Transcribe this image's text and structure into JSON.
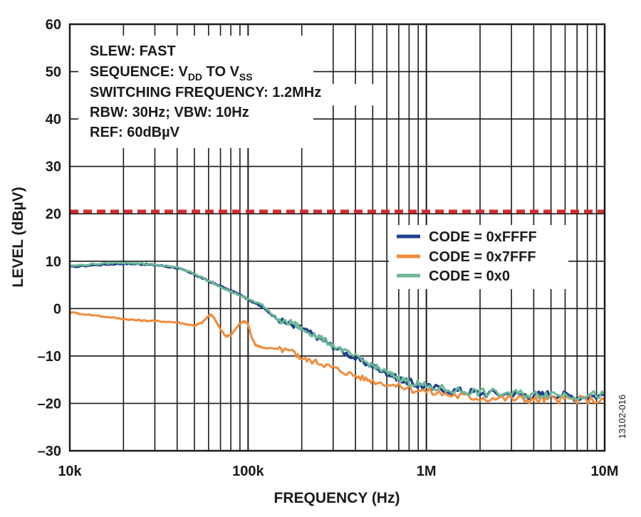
{
  "chart_data": {
    "type": "line",
    "xlabel": "FREQUENCY (Hz)",
    "ylabel": "LEVEL (dBµV)",
    "x_scale": "log",
    "xlim": [
      10000,
      10000000
    ],
    "ylim": [
      -30,
      60
    ],
    "x_ticks": [
      {
        "value": 10000,
        "label": "10k"
      },
      {
        "value": 100000,
        "label": "100k"
      },
      {
        "value": 1000000,
        "label": "1M"
      },
      {
        "value": 10000000,
        "label": "10M"
      }
    ],
    "y_ticks": [
      {
        "value": 60,
        "label": "60"
      },
      {
        "value": 50,
        "label": "50"
      },
      {
        "value": 40,
        "label": "40"
      },
      {
        "value": 30,
        "label": "30"
      },
      {
        "value": 20,
        "label": "20"
      },
      {
        "value": 10,
        "label": "10"
      },
      {
        "value": 0,
        "label": "0"
      },
      {
        "value": -10,
        "label": "–10"
      },
      {
        "value": -20,
        "label": "–20"
      },
      {
        "value": -30,
        "label": "–30"
      }
    ],
    "grid": true,
    "legend_position": "right",
    "annotation_lines": [
      {
        "text": "SLEW: FAST"
      },
      {
        "text": "SEQUENCE: V",
        "sub1": "DD",
        "mid": " TO V",
        "sub2": "SS"
      },
      {
        "text": "SWITCHING FREQUENCY: 1.2MHz"
      },
      {
        "text": "RBW: 30Hz; VBW: 10Hz"
      },
      {
        "text": "REF: 60dBµV"
      }
    ],
    "reference_line": {
      "y": 20.5,
      "color": "#d92b2b",
      "style": "dashed"
    },
    "series": [
      {
        "name": "CODE = 0xFFFF",
        "color": "#1f3f8f",
        "x": [
          10000,
          15000,
          20000,
          25000,
          30000,
          40000,
          50000,
          60000,
          70000,
          80000,
          90000,
          100000,
          120000,
          150000,
          180000,
          200000,
          250000,
          300000,
          400000,
          500000,
          600000,
          700000,
          800000,
          1000000,
          1500000,
          2000000,
          3000000,
          4000000,
          5000000,
          7000000,
          10000000
        ],
        "y": [
          8.8,
          9.3,
          9.5,
          9.4,
          9.2,
          8.6,
          7.2,
          5.8,
          4.7,
          3.7,
          3.0,
          2.0,
          0.3,
          -2.5,
          -3.5,
          -4.2,
          -6.2,
          -8.0,
          -10.5,
          -12.2,
          -13.6,
          -14.8,
          -15.6,
          -16.6,
          -17.4,
          -17.8,
          -18.0,
          -18.3,
          -18.0,
          -18.6,
          -18.3
        ]
      },
      {
        "name": "CODE = 0x7FFF",
        "color": "#f08c3c",
        "x": [
          10000,
          15000,
          20000,
          25000,
          30000,
          40000,
          50000,
          55000,
          60000,
          62000,
          65000,
          70000,
          75000,
          80000,
          90000,
          95000,
          100000,
          105000,
          110000,
          120000,
          150000,
          180000,
          200000,
          250000,
          300000,
          400000,
          500000,
          700000,
          1000000,
          1500000,
          2000000,
          3000000,
          4000000,
          5000000,
          7000000,
          10000000
        ],
        "y": [
          -0.8,
          -1.6,
          -2.2,
          -2.5,
          -2.6,
          -2.9,
          -3.6,
          -3.0,
          -1.6,
          -1.2,
          -2.2,
          -4.4,
          -5.8,
          -5.6,
          -3.2,
          -2.6,
          -3.3,
          -6.2,
          -7.7,
          -8.2,
          -8.6,
          -9.2,
          -10.6,
          -11.4,
          -12.5,
          -14.2,
          -15.3,
          -16.4,
          -17.5,
          -18.4,
          -18.8,
          -19.0,
          -19.2,
          -19.1,
          -19.2,
          -19.3
        ]
      },
      {
        "name": "CODE = 0x0",
        "color": "#6db897",
        "x": [
          10000,
          15000,
          20000,
          25000,
          30000,
          40000,
          50000,
          60000,
          70000,
          80000,
          90000,
          100000,
          120000,
          150000,
          180000,
          200000,
          250000,
          300000,
          400000,
          500000,
          600000,
          700000,
          800000,
          1000000,
          1500000,
          2000000,
          3000000,
          4000000,
          5000000,
          7000000,
          10000000
        ],
        "y": [
          9.0,
          9.5,
          9.7,
          9.5,
          9.2,
          8.7,
          7.4,
          5.8,
          4.6,
          3.6,
          2.7,
          2.1,
          0.8,
          -2.8,
          -3.0,
          -4.4,
          -6.0,
          -7.8,
          -10.2,
          -12.0,
          -13.5,
          -14.6,
          -15.4,
          -16.5,
          -17.3,
          -17.7,
          -17.9,
          -18.2,
          -17.9,
          -18.4,
          -18.1
        ]
      }
    ]
  },
  "figure_id": "13102-016"
}
